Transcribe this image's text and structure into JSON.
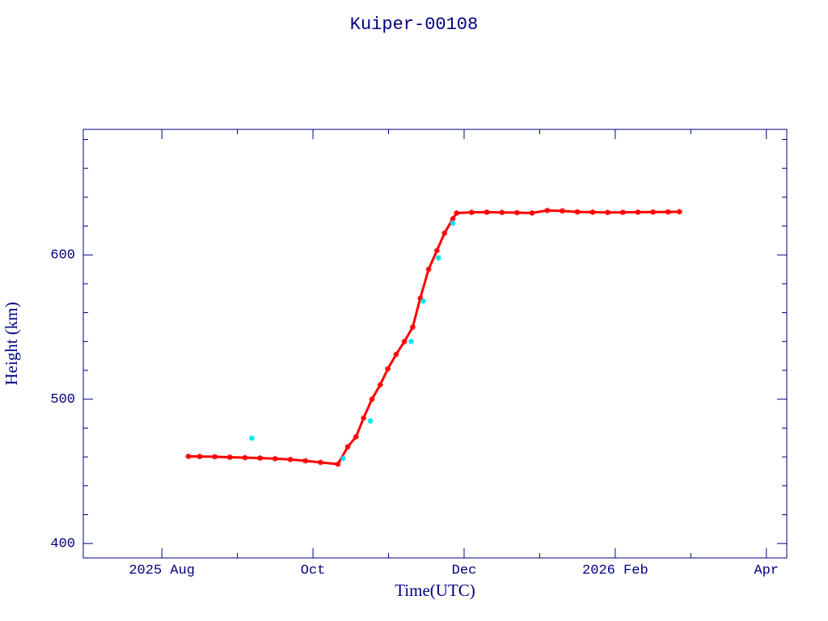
{
  "chart_data": {
    "type": "scatter",
    "title": "Kuiper-00108",
    "x_label": "Time(UTC)",
    "y_label": "Height (km)",
    "xlim": [
      -1.04,
      8.27
    ],
    "xticks": [
      {
        "value": 0,
        "label": "2025 Aug"
      },
      {
        "value": 2,
        "label": "Oct"
      },
      {
        "value": 4,
        "label": "Dec"
      },
      {
        "value": 6,
        "label": "2026 Feb"
      },
      {
        "value": 8,
        "label": "Apr"
      }
    ],
    "xminorticks": [
      1,
      3,
      5,
      7
    ],
    "ylim": [
      390,
      687
    ],
    "yticks": [
      400,
      500,
      600
    ],
    "yminorticks": [
      420,
      440,
      460,
      480,
      520,
      540,
      560,
      580,
      620,
      640,
      660,
      680
    ],
    "axis_color": "#000080",
    "series": [
      {
        "color": "#ff0000",
        "x": [
          0.35,
          0.5,
          0.7,
          0.9,
          1.1,
          1.3,
          1.5,
          1.7,
          1.9,
          2.1,
          2.33,
          2.46,
          2.57,
          2.67,
          2.78,
          2.89,
          2.99,
          3.1,
          3.21,
          3.32,
          3.42,
          3.53,
          3.64,
          3.74,
          3.85,
          3.9,
          4.1,
          4.3,
          4.5,
          4.7,
          4.9,
          5.1,
          5.3,
          5.5,
          5.7,
          5.9,
          6.1,
          6.3,
          6.5,
          6.7,
          6.85
        ],
        "values": [
          460.4,
          460.3,
          460.1,
          459.8,
          459.5,
          459.2,
          458.8,
          458.2,
          457.3,
          456.2,
          455.0,
          467,
          474,
          487,
          500,
          510,
          521,
          531,
          540,
          550,
          570,
          590,
          603,
          615,
          625,
          629,
          629.5,
          629.6,
          629.4,
          629.3,
          629.1,
          630.8,
          630.5,
          629.8,
          629.6,
          629.4,
          629.5,
          629.6,
          629.7,
          629.8,
          629.9
        ]
      },
      {
        "color": "#00e5ee",
        "x": [
          1.19,
          2.4,
          2.76,
          3.3,
          3.46,
          3.66,
          3.85
        ],
        "values": [
          473,
          459,
          485,
          540,
          568,
          598,
          622
        ]
      }
    ]
  }
}
